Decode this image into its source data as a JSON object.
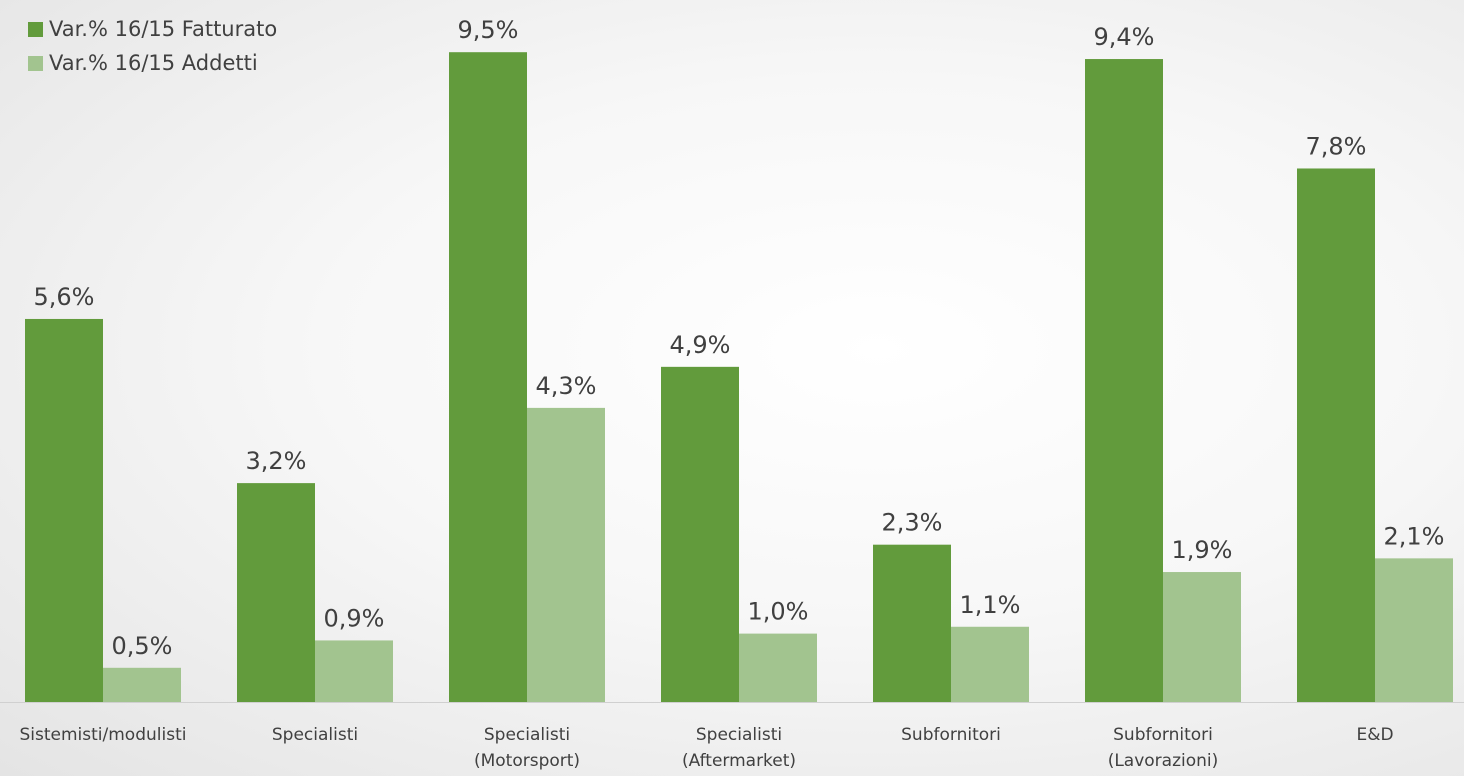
{
  "chart_data": {
    "type": "bar",
    "categories": [
      [
        "Sistemisti/modulisti"
      ],
      [
        "Specialisti"
      ],
      [
        "Specialisti",
        "(Motorsport)"
      ],
      [
        "Specialisti",
        "(Aftermarket)"
      ],
      [
        "Subfornitori"
      ],
      [
        "Subfornitori",
        "(Lavorazioni)"
      ],
      [
        "E&D"
      ]
    ],
    "series": [
      {
        "name": "Var.% 16/15 Fatturato",
        "color": "#629b3c",
        "values": [
          5.6,
          3.2,
          9.5,
          4.9,
          2.3,
          9.4,
          7.8
        ],
        "labels": [
          "5,6%",
          "3,2%",
          "9,5%",
          "4,9%",
          "2,3%",
          "9,4%",
          "7,8%"
        ]
      },
      {
        "name": "Var.% 16/15 Addetti",
        "color": "#a2c48f",
        "values": [
          0.5,
          0.9,
          4.3,
          1.0,
          1.1,
          1.9,
          2.1
        ],
        "labels": [
          "0,5%",
          "0,9%",
          "4,3%",
          "1,0%",
          "1,1%",
          "1,9%",
          "2,1%"
        ]
      }
    ],
    "ylim": [
      0,
      10
    ],
    "grid": false,
    "legend_position": "top-left",
    "axis_line_color": "#d0d0d0",
    "label_color": "#404040"
  }
}
